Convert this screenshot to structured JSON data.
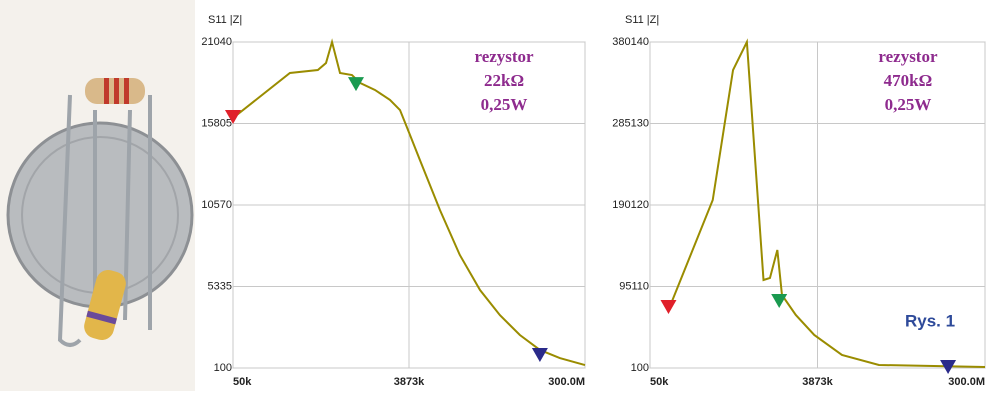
{
  "chart_data": [
    {
      "type": "line",
      "y_label": "S11 |Z|",
      "annotations": [
        "rezystor",
        "22kΩ",
        "0,25W"
      ],
      "log_x": true,
      "grid": true,
      "xlim": [
        50000,
        300000000
      ],
      "xticks": [
        {
          "value": 50000,
          "label": "50k"
        },
        {
          "value": 3873000,
          "label": "3873k"
        },
        {
          "value": 300000000,
          "label": "300.0M"
        }
      ],
      "ylim": [
        100,
        21040
      ],
      "yticks": [
        100,
        5335,
        10570,
        15805,
        21040
      ],
      "x": [
        50000,
        204000,
        407000,
        498000,
        578000,
        704000,
        946000,
        1154000,
        1670000,
        2420000,
        3100000,
        3970000,
        5070000,
        8320000,
        13600000,
        22400000,
        36600000,
        60000000,
        98400000,
        161000000,
        300000000
      ],
      "series": [
        {
          "color": "#9a8c00",
          "values": [
            16160,
            19050,
            19240,
            19690,
            21040,
            19050,
            18920,
            18410,
            17960,
            17320,
            16670,
            15070,
            13460,
            10250,
            7360,
            5110,
            3500,
            2220,
            1260,
            740,
            290
          ]
        }
      ],
      "markers": {
        "x": [
          50000,
          1045000,
          98400000
        ],
        "y": [
          16160,
          18270,
          870
        ],
        "colors": [
          "#e0202a",
          "#1a9a50",
          "#2a2a8a"
        ]
      }
    },
    {
      "type": "line",
      "y_label": "S11 |Z|",
      "annotations": [
        "rezystor",
        "470kΩ",
        "0,25W"
      ],
      "log_x": true,
      "grid": true,
      "xlim": [
        50000,
        300000000
      ],
      "xticks": [
        {
          "value": 50000,
          "label": "50k"
        },
        {
          "value": 3873000,
          "label": "3873k"
        },
        {
          "value": 300000000,
          "label": "300.0M"
        }
      ],
      "ylim": [
        100,
        380140
      ],
      "yticks": [
        100,
        95110,
        190120,
        285130,
        380140
      ],
      "x": [
        80800,
        255000,
        432000,
        619000,
        953000,
        1127000,
        1365000,
        1539000,
        2204000,
        3560000,
        7310000,
        19100000,
        300000000
      ],
      "series": [
        {
          "color": "#9a8c00",
          "values": [
            67720,
            195960,
            347500,
            380140,
            102700,
            105000,
            137700,
            85200,
            61900,
            38600,
            15260,
            3600,
            1270
          ]
        }
      ],
      "markers": {
        "x": [
          80800,
          1432000,
          115000000
        ],
        "y": [
          70050,
          77100,
          100
        ],
        "colors": [
          "#e0202a",
          "#1a9a50",
          "#2a2a8a"
        ]
      }
    }
  ],
  "caption": "Rys. 1"
}
